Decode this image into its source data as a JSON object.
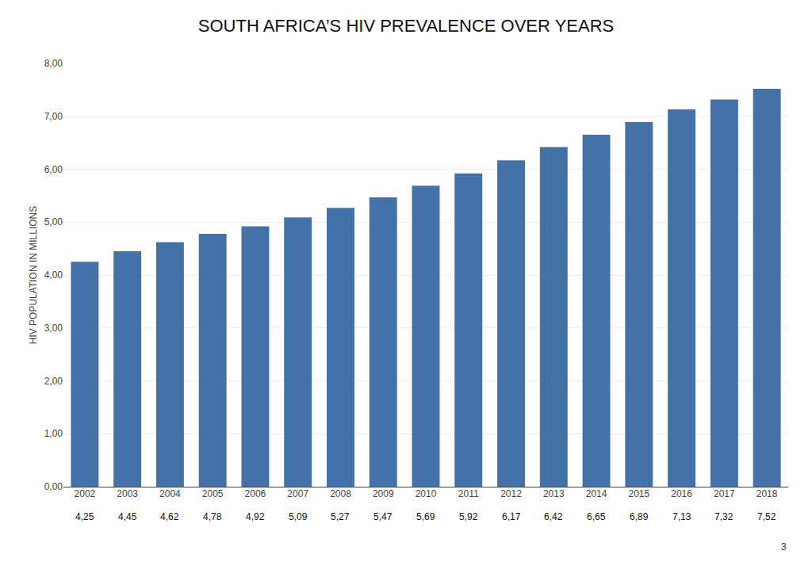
{
  "chart_data": {
    "type": "bar",
    "title": "SOUTH AFRICA’S HIV PREVALENCE OVER YEARS",
    "categories": [
      "2002",
      "2003",
      "2004",
      "2005",
      "2006",
      "2007",
      "2008",
      "2009",
      "2010",
      "2011",
      "2012",
      "2013",
      "2014",
      "2015",
      "2016",
      "2017",
      "2018"
    ],
    "values": [
      4.25,
      4.45,
      4.62,
      4.78,
      4.92,
      5.09,
      5.27,
      5.47,
      5.69,
      5.92,
      6.17,
      6.42,
      6.65,
      6.89,
      7.13,
      7.32,
      7.52
    ],
    "value_labels": [
      "4,25",
      "4,45",
      "4,62",
      "4,78",
      "4,92",
      "5,09",
      "5,27",
      "5,47",
      "5,69",
      "5,92",
      "6,17",
      "6,42",
      "6,65",
      "6,89",
      "7,13",
      "7,32",
      "7,52"
    ],
    "data_labels": true,
    "color": "#4472A8",
    "ylabel": "HIV POPULATION IN MILLIONS",
    "ylim": [
      0,
      8.0
    ],
    "yticks": [
      {
        "value": 0.0,
        "label": "0,00"
      },
      {
        "value": 1.0,
        "label": "1,00"
      },
      {
        "value": 2.0,
        "label": "2,00"
      },
      {
        "value": 3.0,
        "label": "3,00"
      },
      {
        "value": 4.0,
        "label": "4,00"
      },
      {
        "value": 5.0,
        "label": "5,00"
      },
      {
        "value": 6.0,
        "label": "6,00"
      },
      {
        "value": 7.0,
        "label": "7,00"
      },
      {
        "value": 8.0,
        "label": "8,00"
      }
    ],
    "grid": true,
    "annotations": [
      {
        "text": "3"
      }
    ]
  }
}
